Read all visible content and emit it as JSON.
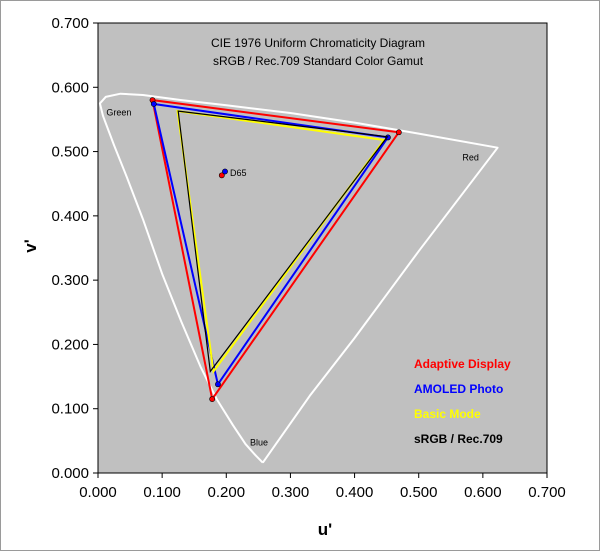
{
  "chart_data": {
    "type": "scatter",
    "title": "CIE 1976 Uniform Chromaticity Diagram",
    "subtitle": "sRGB / Rec.709 Standard Color Gamut",
    "xlabel": "u'",
    "ylabel": "v'",
    "xlim": [
      0,
      0.7
    ],
    "ylim": [
      0,
      0.7
    ],
    "x_ticks": [
      "0.000",
      "0.100",
      "0.200",
      "0.300",
      "0.400",
      "0.500",
      "0.600",
      "0.700"
    ],
    "y_ticks": [
      "0.000",
      "0.100",
      "0.200",
      "0.300",
      "0.400",
      "0.500",
      "0.600",
      "0.700"
    ],
    "grid": false,
    "plot_background": "#c0c0c0",
    "legend_position": "bottom-right",
    "locus": {
      "color": "#ffffff",
      "points": [
        [
          0.257,
          0.016
        ],
        [
          0.246,
          0.027
        ],
        [
          0.23,
          0.045
        ],
        [
          0.21,
          0.075
        ],
        [
          0.185,
          0.115
        ],
        [
          0.16,
          0.165
        ],
        [
          0.13,
          0.235
        ],
        [
          0.1,
          0.31
        ],
        [
          0.07,
          0.395
        ],
        [
          0.045,
          0.46
        ],
        [
          0.025,
          0.51
        ],
        [
          0.008,
          0.555
        ],
        [
          0.003,
          0.575
        ],
        [
          0.012,
          0.585
        ],
        [
          0.035,
          0.59
        ],
        [
          0.07,
          0.588
        ],
        [
          0.13,
          0.58
        ],
        [
          0.2,
          0.572
        ],
        [
          0.3,
          0.56
        ],
        [
          0.4,
          0.545
        ],
        [
          0.5,
          0.528
        ],
        [
          0.623,
          0.506
        ],
        [
          0.5,
          0.345
        ],
        [
          0.4,
          0.21
        ],
        [
          0.33,
          0.12
        ],
        [
          0.257,
          0.016
        ]
      ]
    },
    "region_labels": [
      {
        "text": "Green",
        "x": 0.013,
        "y": 0.556
      },
      {
        "text": "Red",
        "x": 0.568,
        "y": 0.486
      },
      {
        "text": "Blue",
        "x": 0.237,
        "y": 0.043
      }
    ],
    "series": [
      {
        "name": "Adaptive Display",
        "color": "#ff0000",
        "points": [
          [
            0.469,
            0.53
          ],
          [
            0.085,
            0.58
          ],
          [
            0.178,
            0.115
          ]
        ],
        "white_point": [
          0.193,
          0.463
        ]
      },
      {
        "name": "AMOLED Photo",
        "color": "#0000ff",
        "points": [
          [
            0.452,
            0.522
          ],
          [
            0.087,
            0.574
          ],
          [
            0.187,
            0.138
          ]
        ],
        "white_point": [
          0.198,
          0.469
        ]
      },
      {
        "name": "Basic Mode",
        "color": "#ffff00",
        "points": [
          [
            0.446,
            0.518
          ],
          [
            0.124,
            0.563
          ],
          [
            0.18,
            0.158
          ]
        ],
        "white_point": null
      },
      {
        "name": "sRGB / Rec.709",
        "color": "#000000",
        "points": [
          [
            0.451,
            0.523
          ],
          [
            0.125,
            0.563
          ],
          [
            0.175,
            0.158
          ]
        ],
        "white_point": null
      }
    ],
    "annotations": [
      {
        "text": "D65",
        "x": 0.198,
        "y": 0.468
      }
    ]
  }
}
